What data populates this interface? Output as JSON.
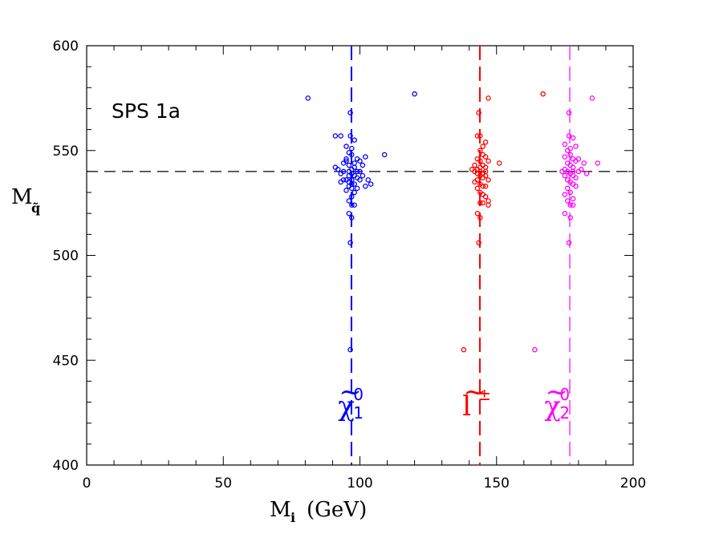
{
  "chart_data": {
    "type": "scatter",
    "annotation": "SPS 1a",
    "xlabel": {
      "main": "M",
      "sub": "i",
      "unit": "(GeV)"
    },
    "ylabel": {
      "main": "M",
      "sub": "q̃"
    },
    "xlim": [
      0,
      200
    ],
    "ylim": [
      400,
      600
    ],
    "x_ticks": [
      0,
      50,
      100,
      150,
      200
    ],
    "y_ticks": [
      400,
      450,
      500,
      550,
      600
    ],
    "grid": false,
    "reference_lines": [
      {
        "orientation": "horizontal",
        "value": 540,
        "color": "#000000"
      },
      {
        "orientation": "vertical",
        "value": 96.9,
        "color": "#0000ff"
      },
      {
        "orientation": "vertical",
        "value": 143.9,
        "color": "#ff0000"
      },
      {
        "orientation": "vertical",
        "value": 176.8,
        "color": "#ff00ff"
      }
    ],
    "series": [
      {
        "name": "χ̃⁰₁",
        "label": {
          "symbol": "χ",
          "tilde": "~",
          "sup": "0",
          "sub": "1"
        },
        "color": "#0000ff",
        "points": [
          [
            81,
            575
          ],
          [
            120,
            577
          ],
          [
            96.5,
            568
          ],
          [
            96.5,
            557
          ],
          [
            98,
            555
          ],
          [
            95,
            552
          ],
          [
            97,
            551
          ],
          [
            93,
            557
          ],
          [
            91,
            557
          ],
          [
            96,
            549
          ],
          [
            97,
            548
          ],
          [
            99,
            546
          ],
          [
            95,
            545
          ],
          [
            96,
            543
          ],
          [
            98,
            542
          ],
          [
            97,
            541
          ],
          [
            96,
            540
          ],
          [
            97,
            539
          ],
          [
            98,
            538
          ],
          [
            99,
            537
          ],
          [
            95,
            536
          ],
          [
            96,
            535
          ],
          [
            97,
            534
          ],
          [
            98,
            534
          ],
          [
            96,
            533
          ],
          [
            97,
            532
          ],
          [
            95,
            531
          ],
          [
            98,
            544
          ],
          [
            100,
            545
          ],
          [
            101,
            543
          ],
          [
            102,
            547
          ],
          [
            109,
            548
          ],
          [
            100,
            540
          ],
          [
            101,
            538
          ],
          [
            103,
            536
          ],
          [
            104,
            534
          ],
          [
            102,
            533
          ],
          [
            99,
            532
          ],
          [
            94,
            540
          ],
          [
            93,
            539
          ],
          [
            92,
            541
          ],
          [
            91,
            542
          ],
          [
            94,
            536
          ],
          [
            93,
            535
          ],
          [
            98,
            530
          ],
          [
            97,
            528
          ],
          [
            96,
            526
          ],
          [
            97,
            524
          ],
          [
            98,
            524
          ],
          [
            96,
            520
          ],
          [
            97,
            518
          ],
          [
            96.5,
            506
          ],
          [
            96.5,
            455
          ],
          [
            95,
            546
          ],
          [
            94,
            544
          ],
          [
            99,
            540
          ],
          [
            100,
            536
          ],
          [
            96,
            538
          ],
          [
            97,
            536
          ]
        ]
      },
      {
        "name": "l̃±",
        "label": {
          "symbol": "l",
          "tilde": "~",
          "sup": "±",
          "sub": ""
        },
        "color": "#ff0000",
        "points": [
          [
            167,
            577
          ],
          [
            147,
            575
          ],
          [
            143.5,
            568
          ],
          [
            144,
            557
          ],
          [
            143,
            557
          ],
          [
            145,
            552
          ],
          [
            146,
            554
          ],
          [
            144,
            550
          ],
          [
            145,
            548
          ],
          [
            143,
            546
          ],
          [
            144,
            545
          ],
          [
            146,
            547
          ],
          [
            147,
            545
          ],
          [
            145,
            543
          ],
          [
            144,
            542
          ],
          [
            143,
            541
          ],
          [
            142,
            540
          ],
          [
            143,
            539
          ],
          [
            144,
            538
          ],
          [
            145,
            537
          ],
          [
            146,
            538
          ],
          [
            147,
            536
          ],
          [
            143,
            536
          ],
          [
            142,
            535
          ],
          [
            144,
            534
          ],
          [
            145,
            533
          ],
          [
            146,
            533
          ],
          [
            143,
            532
          ],
          [
            144,
            530
          ],
          [
            145,
            529
          ],
          [
            146,
            528
          ],
          [
            147,
            526
          ],
          [
            145,
            525
          ],
          [
            144,
            525
          ],
          [
            143,
            520
          ],
          [
            144,
            518
          ],
          [
            151,
            544
          ],
          [
            142,
            543
          ],
          [
            141,
            541
          ],
          [
            146,
            542
          ],
          [
            144,
            540
          ],
          [
            145,
            539
          ],
          [
            146,
            540
          ],
          [
            143.5,
            506
          ],
          [
            138,
            455
          ],
          [
            147,
            524
          ]
        ]
      },
      {
        "name": "χ̃⁰₂",
        "label": {
          "symbol": "χ",
          "tilde": "~",
          "sup": "0",
          "sub": "2"
        },
        "color": "#ff00ff",
        "points": [
          [
            185,
            575
          ],
          [
            176.5,
            568
          ],
          [
            176.5,
            557
          ],
          [
            178,
            556
          ],
          [
            175,
            553
          ],
          [
            177,
            551
          ],
          [
            179,
            552
          ],
          [
            176,
            550
          ],
          [
            177,
            548
          ],
          [
            175,
            547
          ],
          [
            178,
            546
          ],
          [
            179,
            545
          ],
          [
            180,
            546
          ],
          [
            176,
            544
          ],
          [
            177,
            543
          ],
          [
            178,
            542
          ],
          [
            175,
            541
          ],
          [
            176,
            540
          ],
          [
            177,
            539
          ],
          [
            178,
            538
          ],
          [
            179,
            537
          ],
          [
            174,
            540
          ],
          [
            175,
            538
          ],
          [
            176,
            536
          ],
          [
            177,
            535
          ],
          [
            178,
            534
          ],
          [
            179,
            533
          ],
          [
            176,
            532
          ],
          [
            177,
            530
          ],
          [
            175,
            529
          ],
          [
            178,
            527
          ],
          [
            176,
            526
          ],
          [
            177,
            524
          ],
          [
            178,
            524
          ],
          [
            175,
            520
          ],
          [
            177,
            518
          ],
          [
            187,
            544
          ],
          [
            183,
            539
          ],
          [
            182,
            544
          ],
          [
            181,
            541
          ],
          [
            180,
            540
          ],
          [
            176.5,
            506
          ],
          [
            164,
            455
          ],
          [
            178,
            540
          ]
        ]
      }
    ]
  }
}
